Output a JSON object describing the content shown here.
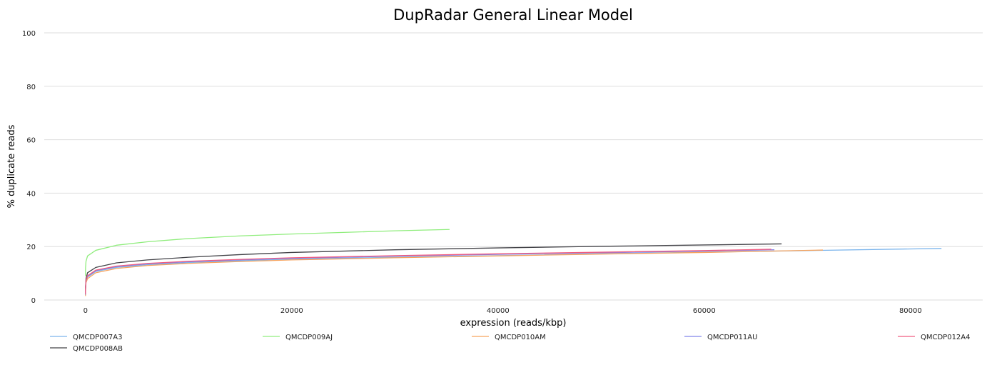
{
  "chart_data": {
    "type": "line",
    "title": "DupRadar General Linear Model",
    "xlabel": "expression (reads/kbp)",
    "ylabel": "% duplicate reads",
    "xlim": [
      -4000,
      87000
    ],
    "ylim": [
      0,
      100
    ],
    "xticks": [
      0,
      20000,
      40000,
      60000,
      80000
    ],
    "yticks": [
      0,
      20,
      40,
      60,
      80,
      100
    ],
    "grid": "horizontal",
    "legend_position": "bottom",
    "series": [
      {
        "name": "QMCDP007A3",
        "color": "#7cb5ec",
        "points": [
          [
            0,
            1.8
          ],
          [
            5,
            4.0
          ],
          [
            50,
            7.0
          ],
          [
            200,
            8.6
          ],
          [
            1000,
            10.7
          ],
          [
            3000,
            12.2
          ],
          [
            6000,
            13.2
          ],
          [
            10000,
            14.0
          ],
          [
            15000,
            14.7
          ],
          [
            20000,
            15.3
          ],
          [
            30000,
            16.0
          ],
          [
            40000,
            16.6
          ],
          [
            50000,
            17.3
          ],
          [
            60000,
            17.9
          ],
          [
            70000,
            18.5
          ],
          [
            83000,
            19.3
          ]
        ]
      },
      {
        "name": "QMCDP008AB",
        "color": "#434348",
        "points": [
          [
            0,
            3.0
          ],
          [
            5,
            5.0
          ],
          [
            50,
            8.0
          ],
          [
            200,
            10.2
          ],
          [
            1000,
            12.2
          ],
          [
            3000,
            13.9
          ],
          [
            6000,
            15.0
          ],
          [
            10000,
            16.0
          ],
          [
            15000,
            17.0
          ],
          [
            20000,
            17.8
          ],
          [
            30000,
            18.8
          ],
          [
            40000,
            19.5
          ],
          [
            50000,
            20.1
          ],
          [
            60000,
            20.6
          ],
          [
            67500,
            21.0
          ]
        ]
      },
      {
        "name": "QMCDP009AJ",
        "color": "#90ed7d",
        "points": [
          [
            0,
            9.0
          ],
          [
            5,
            12.0
          ],
          [
            50,
            14.5
          ],
          [
            200,
            16.5
          ],
          [
            1000,
            18.6
          ],
          [
            3000,
            20.5
          ],
          [
            6000,
            21.8
          ],
          [
            10000,
            23.0
          ],
          [
            15000,
            24.0
          ],
          [
            20000,
            24.7
          ],
          [
            25000,
            25.3
          ],
          [
            30000,
            25.9
          ],
          [
            35300,
            26.4
          ]
        ]
      },
      {
        "name": "QMCDP010AM",
        "color": "#f7a35c",
        "points": [
          [
            0,
            1.5
          ],
          [
            5,
            3.5
          ],
          [
            50,
            6.5
          ],
          [
            200,
            8.0
          ],
          [
            1000,
            10.2
          ],
          [
            3000,
            11.8
          ],
          [
            6000,
            12.9
          ],
          [
            10000,
            13.7
          ],
          [
            15000,
            14.4
          ],
          [
            20000,
            15.0
          ],
          [
            30000,
            15.8
          ],
          [
            40000,
            16.5
          ],
          [
            50000,
            17.2
          ],
          [
            60000,
            17.8
          ],
          [
            71500,
            18.7
          ]
        ]
      },
      {
        "name": "QMCDP011AU",
        "color": "#8085e9",
        "points": [
          [
            0,
            2.0
          ],
          [
            5,
            4.2
          ],
          [
            50,
            7.2
          ],
          [
            200,
            8.9
          ],
          [
            1000,
            11.0
          ],
          [
            3000,
            12.5
          ],
          [
            6000,
            13.5
          ],
          [
            10000,
            14.3
          ],
          [
            15000,
            15.0
          ],
          [
            20000,
            15.6
          ],
          [
            30000,
            16.4
          ],
          [
            40000,
            17.1
          ],
          [
            50000,
            17.7
          ],
          [
            60000,
            18.3
          ],
          [
            66800,
            18.8
          ]
        ]
      },
      {
        "name": "QMCDP012A4",
        "color": "#f15c80",
        "points": [
          [
            0,
            2.2
          ],
          [
            5,
            4.4
          ],
          [
            50,
            7.4
          ],
          [
            200,
            9.1
          ],
          [
            1000,
            11.2
          ],
          [
            3000,
            12.7
          ],
          [
            6000,
            13.7
          ],
          [
            10000,
            14.5
          ],
          [
            15000,
            15.2
          ],
          [
            20000,
            15.8
          ],
          [
            30000,
            16.6
          ],
          [
            40000,
            17.3
          ],
          [
            50000,
            17.9
          ],
          [
            60000,
            18.5
          ],
          [
            66500,
            19.0
          ]
        ]
      }
    ]
  }
}
